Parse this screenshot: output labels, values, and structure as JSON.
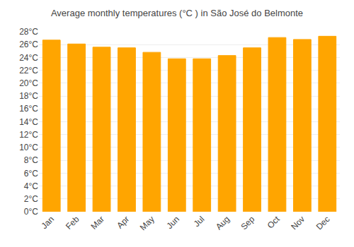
{
  "chart_data": {
    "type": "bar",
    "title": "Average monthly temperatures (°C ) in São José do Belmonte",
    "categories": [
      "Jan",
      "Feb",
      "Mar",
      "Apr",
      "May",
      "Jun",
      "Jul",
      "Aug",
      "Sep",
      "Oct",
      "Nov",
      "Dec"
    ],
    "values": [
      26.7,
      26.1,
      25.6,
      25.5,
      24.8,
      23.8,
      23.8,
      24.3,
      25.5,
      27.1,
      26.8,
      27.3
    ],
    "color": "#FFA500",
    "ylim": [
      0,
      28
    ],
    "yticks": [
      {
        "value": 0,
        "label": "0°C"
      },
      {
        "value": 2,
        "label": "2°C"
      },
      {
        "value": 4,
        "label": "4°C"
      },
      {
        "value": 6,
        "label": "6°C"
      },
      {
        "value": 8,
        "label": "8°C"
      },
      {
        "value": 10,
        "label": "10°C"
      },
      {
        "value": 12,
        "label": "12°C"
      },
      {
        "value": 14,
        "label": "14°C"
      },
      {
        "value": 16,
        "label": "16°C"
      },
      {
        "value": 18,
        "label": "18°C"
      },
      {
        "value": 20,
        "label": "20°C"
      },
      {
        "value": 22,
        "label": "22°C"
      },
      {
        "value": 24,
        "label": "24°C"
      },
      {
        "value": 26,
        "label": "26°C"
      },
      {
        "value": 28,
        "label": "28°C"
      }
    ],
    "grid": true
  }
}
